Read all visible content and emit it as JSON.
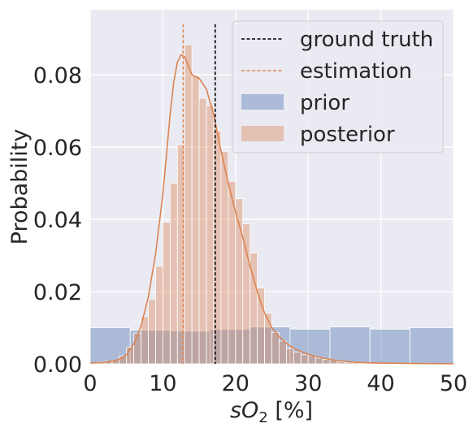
{
  "chart_data": {
    "type": "bar",
    "xlabel": "sO",
    "xlabel_sub": "2",
    "xlabel_unit": " [%]",
    "ylabel": "Probability",
    "xlim": [
      0,
      50
    ],
    "ylim": [
      0,
      0.098
    ],
    "xticks": [
      0,
      10,
      20,
      30,
      40,
      50
    ],
    "xtick_labels": [
      "0",
      "10",
      "20",
      "30",
      "40",
      "50"
    ],
    "yticks": [
      0,
      0.02,
      0.04,
      0.06,
      0.08
    ],
    "ytick_labels": [
      "0.00",
      "0.02",
      "0.04",
      "0.06",
      "0.08"
    ],
    "grid": true,
    "legend_position": "top-right",
    "colors": {
      "background": "#eaeaf2",
      "grid": "#ffffff",
      "prior": "#4c72b0",
      "posterior": "#dd8452",
      "ground_truth": "#000000",
      "estimation": "#dd8452"
    },
    "legend": {
      "ground_truth": "ground truth",
      "estimation": "estimation",
      "prior": "prior",
      "posterior": "posterior"
    },
    "ground_truth": 17.2,
    "estimation": 12.8,
    "vline_top": 0.094,
    "prior": {
      "name": "prior",
      "bin_edges": [
        0,
        5.5,
        11,
        16.5,
        22,
        27.5,
        33,
        38.5,
        44,
        50
      ],
      "values": [
        0.01,
        0.0093,
        0.0091,
        0.0096,
        0.0102,
        0.0096,
        0.0102,
        0.0096,
        0.01
      ]
    },
    "posterior": {
      "name": "posterior",
      "bin_start": 0,
      "bin_width": 1,
      "values": [
        0.0003,
        0.0005,
        0.0007,
        0.001,
        0.0022,
        0.0046,
        0.0085,
        0.0131,
        0.0179,
        0.027,
        0.0392,
        0.05,
        0.0607,
        0.0883,
        0.0798,
        0.0735,
        0.0715,
        0.0645,
        0.0588,
        0.0505,
        0.0457,
        0.0388,
        0.0307,
        0.021,
        0.014,
        0.0087,
        0.0063,
        0.0042,
        0.0033,
        0.0025,
        0.0023,
        0.0016,
        0.0012,
        0.0011,
        0.0005,
        0.0004,
        0.0003,
        0.0001
      ],
      "kde_x": [
        0,
        2,
        4,
        5,
        6,
        7,
        8,
        9,
        10,
        10.5,
        11,
        11.5,
        12,
        12.5,
        13,
        13.5,
        14,
        14.5,
        15,
        15.5,
        16,
        16.5,
        17,
        17.5,
        18,
        18.5,
        19,
        20,
        21,
        22,
        23,
        24,
        25,
        26,
        27,
        28,
        29,
        30,
        32,
        34,
        36,
        38,
        40,
        45,
        50
      ],
      "kde_y": [
        0.0002,
        0.0004,
        0.0012,
        0.0025,
        0.0055,
        0.0105,
        0.0185,
        0.0305,
        0.047,
        0.058,
        0.069,
        0.078,
        0.0835,
        0.0855,
        0.085,
        0.0825,
        0.08,
        0.0795,
        0.079,
        0.0775,
        0.076,
        0.0725,
        0.069,
        0.064,
        0.059,
        0.0545,
        0.05,
        0.042,
        0.035,
        0.027,
        0.02,
        0.014,
        0.01,
        0.0075,
        0.0057,
        0.0043,
        0.0034,
        0.0026,
        0.0016,
        0.0009,
        0.0005,
        0.0003,
        0.0002,
        0.0001,
        5e-05
      ]
    }
  }
}
